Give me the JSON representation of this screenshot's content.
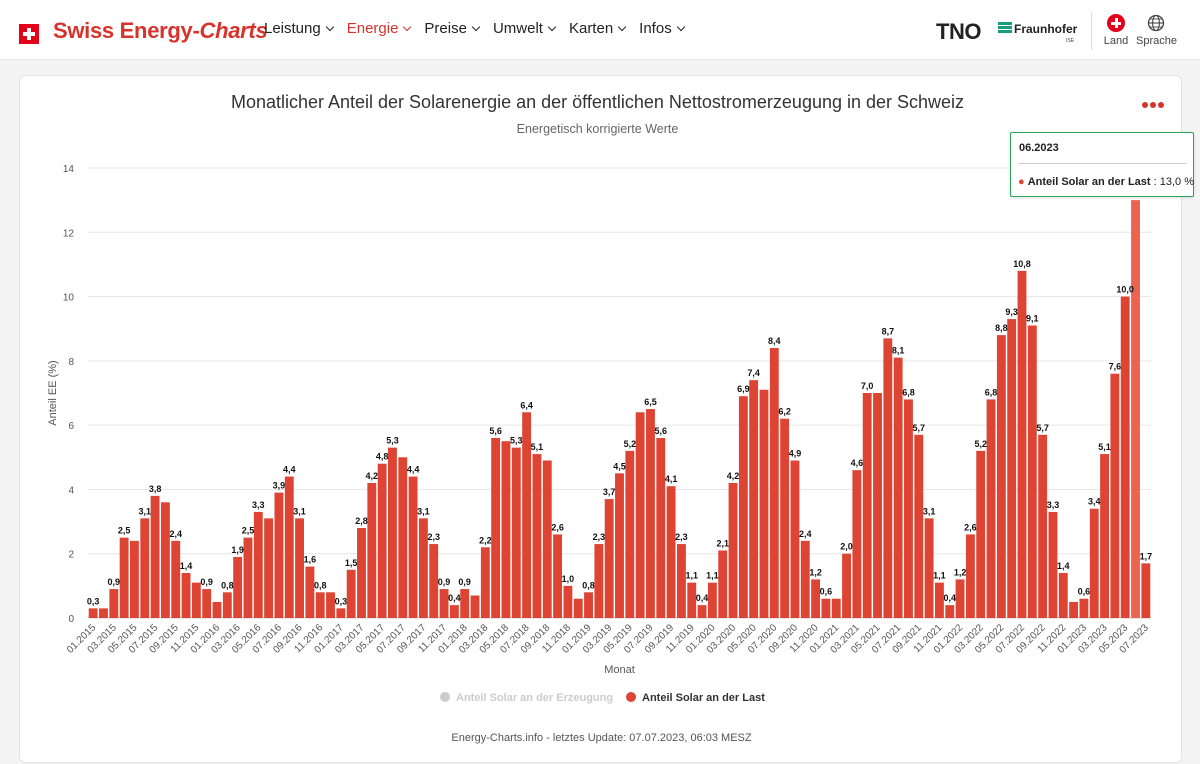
{
  "header": {
    "brand_main": "Swiss Energy-",
    "brand_italic": "Charts",
    "nav": [
      {
        "label": "Leistung"
      },
      {
        "label": "Energie"
      },
      {
        "label": "Preise"
      },
      {
        "label": "Umwelt"
      },
      {
        "label": "Karten"
      },
      {
        "label": "Infos"
      }
    ],
    "tno_logo": "TNO",
    "fraunhofer_logo": "Fraunhofer",
    "fraunhofer_sub": "ISE",
    "land_label": "Land",
    "sprache_label": "Sprache"
  },
  "colors": {
    "accent": "#d7332c",
    "bar": "#dd4433",
    "bar_highlight": "#ec6352",
    "legend_inactive": "#cccccc",
    "tooltip_border": "#2aa35b"
  },
  "icons": {
    "menu": "three-dots-icon",
    "land": "swiss-cross-icon",
    "sprache": "globe-icon",
    "dropdown": "chevron-down-icon"
  },
  "chart_data": {
    "type": "bar",
    "title": "Monatlicher Anteil der Solarenergie an der öffentlichen Nettostromerzeugung in der Schweiz",
    "subtitle": "Energetisch korrigierte Werte",
    "xlabel": "Monat",
    "ylabel": "Anteil EE (%)",
    "ylim": [
      0,
      14
    ],
    "yticks": [
      0,
      2,
      4,
      6,
      8,
      10,
      12,
      14
    ],
    "grid": true,
    "legend_position": "bottom",
    "legend": [
      {
        "name": "Anteil Solar an der Erzeugung",
        "active": false
      },
      {
        "name": "Anteil Solar an der Last",
        "active": true
      }
    ],
    "categories": [
      "01.2015",
      "02.2015",
      "03.2015",
      "04.2015",
      "05.2015",
      "06.2015",
      "07.2015",
      "08.2015",
      "09.2015",
      "10.2015",
      "11.2015",
      "12.2015",
      "01.2016",
      "02.2016",
      "03.2016",
      "04.2016",
      "05.2016",
      "06.2016",
      "07.2016",
      "08.2016",
      "09.2016",
      "10.2016",
      "11.2016",
      "12.2016",
      "01.2017",
      "02.2017",
      "03.2017",
      "04.2017",
      "05.2017",
      "06.2017",
      "07.2017",
      "08.2017",
      "09.2017",
      "10.2017",
      "11.2017",
      "12.2017",
      "01.2018",
      "02.2018",
      "03.2018",
      "04.2018",
      "05.2018",
      "06.2018",
      "07.2018",
      "08.2018",
      "09.2018",
      "10.2018",
      "11.2018",
      "12.2018",
      "01.2019",
      "02.2019",
      "03.2019",
      "04.2019",
      "05.2019",
      "06.2019",
      "07.2019",
      "08.2019",
      "09.2019",
      "10.2019",
      "11.2019",
      "12.2019",
      "01.2020",
      "02.2020",
      "03.2020",
      "04.2020",
      "05.2020",
      "06.2020",
      "07.2020",
      "08.2020",
      "09.2020",
      "10.2020",
      "11.2020",
      "12.2020",
      "01.2021",
      "02.2021",
      "03.2021",
      "04.2021",
      "05.2021",
      "06.2021",
      "07.2021",
      "08.2021",
      "09.2021",
      "10.2021",
      "11.2021",
      "12.2021",
      "01.2022",
      "02.2022",
      "03.2022",
      "04.2022",
      "05.2022",
      "06.2022",
      "07.2022",
      "08.2022",
      "09.2022",
      "10.2022",
      "11.2022",
      "12.2022",
      "01.2023",
      "02.2023",
      "03.2023",
      "04.2023",
      "05.2023",
      "06.2023",
      "07.2023"
    ],
    "xtick_labels": [
      "01.2015",
      "03.2015",
      "05.2015",
      "07.2015",
      "09.2015",
      "11.2015",
      "01.2016",
      "03.2016",
      "05.2016",
      "07.2016",
      "09.2016",
      "11.2016",
      "01.2017",
      "03.2017",
      "05.2017",
      "07.2017",
      "09.2017",
      "11.2017",
      "01.2018",
      "03.2018",
      "05.2018",
      "07.2018",
      "09.2018",
      "11.2018",
      "01.2019",
      "03.2019",
      "05.2019",
      "07.2019",
      "09.2019",
      "11.2019",
      "01.2020",
      "03.2020",
      "05.2020",
      "07.2020",
      "09.2020",
      "11.2020",
      "01.2021",
      "03.2021",
      "05.2021",
      "07.2021",
      "09.2021",
      "11.2021",
      "01.2022",
      "03.2022",
      "05.2022",
      "07.2022",
      "09.2022",
      "11.2022",
      "01.2023",
      "03.2023",
      "05.2023",
      "07.2023"
    ],
    "series": [
      {
        "name": "Anteil Solar an der Last",
        "values": [
          0.3,
          0.3,
          0.9,
          2.5,
          2.4,
          3.1,
          3.8,
          3.6,
          2.4,
          1.4,
          1.1,
          0.9,
          0.5,
          0.8,
          1.9,
          2.5,
          3.3,
          3.1,
          3.9,
          4.4,
          3.1,
          1.6,
          0.8,
          0.8,
          0.3,
          1.5,
          2.8,
          4.2,
          4.8,
          5.3,
          5.0,
          4.4,
          3.1,
          2.3,
          0.9,
          0.4,
          0.9,
          0.7,
          2.2,
          5.6,
          5.5,
          5.3,
          6.4,
          5.1,
          4.9,
          2.6,
          1.0,
          0.6,
          0.8,
          2.3,
          3.7,
          4.5,
          5.2,
          6.4,
          6.5,
          5.6,
          4.1,
          2.3,
          1.1,
          0.4,
          1.1,
          2.1,
          4.2,
          6.9,
          7.4,
          7.1,
          8.4,
          6.2,
          4.9,
          2.4,
          1.2,
          0.6,
          0.6,
          2.0,
          4.6,
          7.0,
          7.0,
          8.7,
          8.1,
          6.8,
          5.7,
          3.1,
          1.1,
          0.4,
          1.2,
          2.6,
          5.2,
          6.8,
          8.8,
          9.3,
          10.8,
          9.1,
          5.7,
          3.3,
          1.4,
          0.5,
          0.6,
          3.4,
          5.1,
          7.6,
          10.0,
          13.0,
          1.7
        ],
        "labels": [
          "0,3",
          "",
          "0,9",
          "2,5",
          "",
          "3,1",
          "3,8",
          "",
          "2,4",
          "1,4",
          "",
          "0,9",
          "",
          "0,8",
          "1,9",
          "2,5",
          "3,3",
          "",
          "3,9",
          "4,4",
          "3,1",
          "1,6",
          "0,8",
          "",
          "0,3",
          "1,5",
          "2,8",
          "4,2",
          "4,8",
          "5,3",
          "",
          "4,4",
          "3,1",
          "2,3",
          "0,9",
          "0,4",
          "0,9",
          "",
          "2,2",
          "5,6",
          "",
          "5,3",
          "6,4",
          "5,1",
          "",
          "2,6",
          "1,0",
          "",
          "0,8",
          "2,3",
          "3,7",
          "4,5",
          "5,2",
          "",
          "6,5",
          "5,6",
          "4,1",
          "2,3",
          "1,1",
          "0,4",
          "1,1",
          "2,1",
          "4,2",
          "6,9",
          "7,4",
          "",
          "8,4",
          "6,2",
          "4,9",
          "2,4",
          "1,2",
          "0,6",
          "",
          "2,0",
          "4,6",
          "7,0",
          "",
          "8,7",
          "8,1",
          "6,8",
          "5,7",
          "3,1",
          "1,1",
          "0,4",
          "1,2",
          "2,6",
          "5,2",
          "6,8",
          "8,8",
          "9,3",
          "10,8",
          "9,1",
          "5,7",
          "3,3",
          "1,4",
          "",
          "0,6",
          "3,4",
          "5,1",
          "7,6",
          "10,0",
          "",
          "1,7"
        ]
      }
    ],
    "highlight_index": 101,
    "tooltip": {
      "header": "06.2023",
      "series": "Anteil Solar an der Last",
      "value": ": 13,0 %"
    }
  },
  "footer_text": "Energy-Charts.info - letztes Update: 07.07.2023, 06:03 MESZ"
}
